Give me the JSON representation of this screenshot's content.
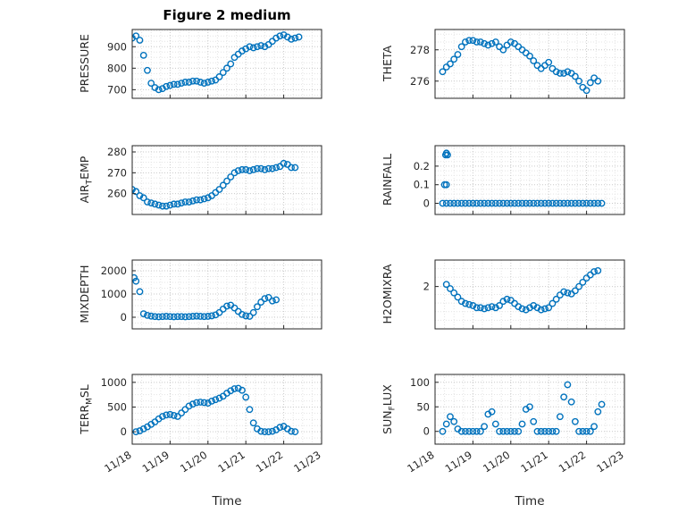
{
  "figure": {
    "title": "Figure 2 medium",
    "xlabel": "Time",
    "marker_color": "#0072BD",
    "x_tick_labels": [
      "11/18",
      "11/19",
      "11/20",
      "11/21",
      "11/22",
      "11/23"
    ]
  },
  "chart_data": [
    {
      "type": "scatter",
      "name": "PRESSURE",
      "ylabel": {
        "pre": "PRESSURE",
        "sub": "",
        "post": ""
      },
      "yticks": [
        700,
        800,
        900
      ],
      "ylim": [
        660,
        980
      ],
      "xlim": [
        0,
        5
      ],
      "x": [
        0,
        0.1,
        0.2,
        0.3,
        0.4,
        0.5,
        0.6,
        0.7,
        0.8,
        0.9,
        1,
        1.1,
        1.2,
        1.3,
        1.4,
        1.5,
        1.6,
        1.7,
        1.8,
        1.9,
        2,
        2.1,
        2.2,
        2.3,
        2.4,
        2.5,
        2.6,
        2.7,
        2.8,
        2.9,
        3,
        3.1,
        3.2,
        3.3,
        3.4,
        3.5,
        3.6,
        3.7,
        3.8,
        3.9,
        4,
        4.1,
        4.2,
        4.3,
        4.4
      ],
      "y": [
        940,
        950,
        930,
        860,
        790,
        730,
        710,
        700,
        705,
        715,
        720,
        725,
        725,
        730,
        735,
        735,
        740,
        740,
        735,
        730,
        735,
        740,
        745,
        760,
        780,
        800,
        820,
        850,
        865,
        880,
        890,
        900,
        895,
        900,
        905,
        900,
        910,
        925,
        940,
        950,
        955,
        945,
        935,
        940,
        945
      ]
    },
    {
      "type": "scatter",
      "name": "THETA",
      "ylabel": {
        "pre": "THETA",
        "sub": "",
        "post": ""
      },
      "yticks": [
        276,
        278
      ],
      "ylim": [
        274.9,
        279.3
      ],
      "xlim": [
        0,
        5
      ],
      "x": [
        0.2,
        0.3,
        0.4,
        0.5,
        0.6,
        0.7,
        0.8,
        0.9,
        1,
        1.1,
        1.2,
        1.3,
        1.4,
        1.5,
        1.6,
        1.7,
        1.8,
        1.9,
        2,
        2.1,
        2.2,
        2.3,
        2.4,
        2.5,
        2.6,
        2.7,
        2.8,
        2.9,
        3,
        3.1,
        3.2,
        3.3,
        3.4,
        3.5,
        3.6,
        3.7,
        3.8,
        3.9,
        4,
        4.1,
        4.2,
        4.3
      ],
      "y": [
        276.6,
        276.9,
        277.1,
        277.4,
        277.7,
        278.2,
        278.5,
        278.6,
        278.6,
        278.5,
        278.5,
        278.4,
        278.3,
        278.4,
        278.5,
        278.2,
        278,
        278.3,
        278.5,
        278.4,
        278.2,
        278,
        277.8,
        277.6,
        277.3,
        277,
        276.8,
        277,
        277.2,
        276.8,
        276.6,
        276.5,
        276.5,
        276.6,
        276.5,
        276.3,
        276,
        275.6,
        275.4,
        275.9,
        276.2,
        276
      ]
    },
    {
      "type": "scatter",
      "name": "AIR_TEMP",
      "ylabel": {
        "pre": "AIR",
        "sub": "T",
        "post": "EMP"
      },
      "yticks": [
        260,
        270,
        280
      ],
      "ylim": [
        250,
        283
      ],
      "xlim": [
        0,
        5
      ],
      "x": [
        0,
        0.1,
        0.2,
        0.3,
        0.4,
        0.5,
        0.6,
        0.7,
        0.8,
        0.9,
        1,
        1.1,
        1.2,
        1.3,
        1.4,
        1.5,
        1.6,
        1.7,
        1.8,
        1.9,
        2,
        2.1,
        2.2,
        2.3,
        2.4,
        2.5,
        2.6,
        2.7,
        2.8,
        2.9,
        3,
        3.1,
        3.2,
        3.3,
        3.4,
        3.5,
        3.6,
        3.7,
        3.8,
        3.9,
        4,
        4.1,
        4.2,
        4.3
      ],
      "y": [
        262,
        261,
        259,
        258,
        256,
        255.5,
        255,
        254.5,
        254,
        254,
        254.5,
        255,
        255,
        255.5,
        256,
        256,
        256.5,
        257,
        257,
        257.5,
        258,
        259,
        260.5,
        262,
        264,
        266,
        268,
        270,
        271,
        271.5,
        271.5,
        271,
        271.5,
        272,
        272,
        271.5,
        272,
        272,
        272.5,
        273,
        274.5,
        274,
        272.5,
        272.5
      ]
    },
    {
      "type": "scatter",
      "name": "RAINFALL",
      "ylabel": {
        "pre": "RAINFALL",
        "sub": "",
        "post": ""
      },
      "yticks": [
        0,
        0.1,
        0.2
      ],
      "ylim": [
        -0.06,
        0.31
      ],
      "xlim": [
        0,
        5
      ],
      "x": [
        0.25,
        0.3,
        0.28,
        0.33,
        0.3,
        0.2,
        0.3,
        0.4,
        0.5,
        0.6,
        0.7,
        0.8,
        0.9,
        1,
        1.1,
        1.2,
        1.3,
        1.4,
        1.5,
        1.6,
        1.7,
        1.8,
        1.9,
        2,
        2.1,
        2.2,
        2.3,
        2.4,
        2.5,
        2.6,
        2.7,
        2.8,
        2.9,
        3,
        3.1,
        3.2,
        3.3,
        3.4,
        3.5,
        3.6,
        3.7,
        3.8,
        3.9,
        4,
        4.1,
        4.2,
        4.3,
        4.4
      ],
      "y": [
        0.1,
        0.1,
        0.26,
        0.26,
        0.27,
        0,
        0,
        0,
        0,
        0,
        0,
        0,
        0,
        0,
        0,
        0,
        0,
        0,
        0,
        0,
        0,
        0,
        0,
        0,
        0,
        0,
        0,
        0,
        0,
        0,
        0,
        0,
        0,
        0,
        0,
        0,
        0,
        0,
        0,
        0,
        0,
        0,
        0,
        0,
        0,
        0,
        0,
        0
      ]
    },
    {
      "type": "scatter",
      "name": "MIXDEPTH",
      "ylabel": {
        "pre": "MIXDEPTH",
        "sub": "",
        "post": ""
      },
      "yticks": [
        0,
        1000,
        2000
      ],
      "ylim": [
        -500,
        2460
      ],
      "xlim": [
        0,
        5
      ],
      "x": [
        0.05,
        0.1,
        0.2,
        0.3,
        0.4,
        0.5,
        0.6,
        0.7,
        0.8,
        0.9,
        1,
        1.1,
        1.2,
        1.3,
        1.4,
        1.5,
        1.6,
        1.7,
        1.8,
        1.9,
        2,
        2.1,
        2.2,
        2.3,
        2.4,
        2.5,
        2.6,
        2.7,
        2.8,
        2.9,
        3,
        3.1,
        3.2,
        3.3,
        3.4,
        3.5,
        3.6,
        3.7,
        3.8
      ],
      "y": [
        1700,
        1550,
        1100,
        150,
        80,
        50,
        30,
        20,
        30,
        40,
        30,
        20,
        30,
        30,
        20,
        30,
        40,
        50,
        40,
        30,
        40,
        60,
        100,
        200,
        350,
        480,
        520,
        400,
        250,
        120,
        60,
        40,
        200,
        450,
        650,
        800,
        850,
        700,
        750
      ]
    },
    {
      "type": "scatter",
      "name": "H2OMIXRA",
      "ylabel": {
        "pre": "H2OMIXRA",
        "sub": "",
        "post": ""
      },
      "yticks": [
        2
      ],
      "ylim": [
        0,
        3.25
      ],
      "xlim": [
        0,
        5
      ],
      "x": [
        0.3,
        0.4,
        0.5,
        0.6,
        0.7,
        0.8,
        0.9,
        1,
        1.1,
        1.2,
        1.3,
        1.4,
        1.5,
        1.6,
        1.7,
        1.8,
        1.9,
        2,
        2.1,
        2.2,
        2.3,
        2.4,
        2.5,
        2.6,
        2.7,
        2.8,
        2.9,
        3,
        3.1,
        3.2,
        3.3,
        3.4,
        3.5,
        3.6,
        3.7,
        3.8,
        3.9,
        4,
        4.1,
        4.2,
        4.3
      ],
      "y": [
        2.1,
        1.9,
        1.7,
        1.5,
        1.3,
        1.2,
        1.15,
        1.1,
        1,
        1,
        0.95,
        1,
        1.05,
        1,
        1.1,
        1.3,
        1.4,
        1.35,
        1.2,
        1.05,
        0.95,
        0.9,
        1,
        1.1,
        1,
        0.9,
        0.95,
        1,
        1.2,
        1.4,
        1.6,
        1.75,
        1.7,
        1.65,
        1.8,
        2,
        2.2,
        2.4,
        2.55,
        2.7,
        2.75
      ]
    },
    {
      "type": "scatter",
      "name": "TERR_MSL",
      "ylabel": {
        "pre": "TERR",
        "sub": "M",
        "post": "SL"
      },
      "yticks": [
        0,
        500,
        1000
      ],
      "ylim": [
        -250,
        1160
      ],
      "xlim": [
        0,
        5
      ],
      "x": [
        0.1,
        0.2,
        0.3,
        0.4,
        0.5,
        0.6,
        0.7,
        0.8,
        0.9,
        1,
        1.1,
        1.2,
        1.3,
        1.4,
        1.5,
        1.6,
        1.7,
        1.8,
        1.9,
        2,
        2.1,
        2.2,
        2.3,
        2.4,
        2.5,
        2.6,
        2.7,
        2.8,
        2.9,
        3,
        3.1,
        3.2,
        3.3,
        3.4,
        3.5,
        3.6,
        3.7,
        3.8,
        3.9,
        4,
        4.1,
        4.2,
        4.3
      ],
      "y": [
        0,
        20,
        60,
        100,
        150,
        200,
        260,
        310,
        340,
        350,
        330,
        310,
        380,
        450,
        520,
        560,
        590,
        600,
        590,
        580,
        620,
        650,
        680,
        720,
        780,
        830,
        870,
        880,
        840,
        700,
        450,
        180,
        60,
        10,
        0,
        0,
        10,
        40,
        90,
        110,
        60,
        10,
        0
      ]
    },
    {
      "type": "scatter",
      "name": "SUN_FLUX",
      "ylabel": {
        "pre": "SUN",
        "sub": "F",
        "post": "LUX"
      },
      "yticks": [
        0,
        50,
        100
      ],
      "ylim": [
        -26,
        116
      ],
      "xlim": [
        0,
        5
      ],
      "x": [
        0.2,
        0.3,
        0.4,
        0.5,
        0.6,
        0.7,
        0.8,
        0.9,
        1,
        1.1,
        1.2,
        1.3,
        1.4,
        1.5,
        1.6,
        1.7,
        1.8,
        1.9,
        2,
        2.1,
        2.2,
        2.3,
        2.4,
        2.5,
        2.6,
        2.7,
        2.8,
        2.9,
        3,
        3.1,
        3.2,
        3.3,
        3.4,
        3.5,
        3.6,
        3.7,
        3.8,
        3.9,
        4,
        4.1,
        4.2,
        4.3,
        4.4
      ],
      "y": [
        0,
        15,
        30,
        20,
        5,
        0,
        0,
        0,
        0,
        0,
        0,
        10,
        35,
        40,
        15,
        0,
        0,
        0,
        0,
        0,
        0,
        15,
        45,
        50,
        20,
        0,
        0,
        0,
        0,
        0,
        0,
        30,
        70,
        95,
        60,
        20,
        0,
        0,
        0,
        0,
        10,
        40,
        55
      ]
    }
  ]
}
